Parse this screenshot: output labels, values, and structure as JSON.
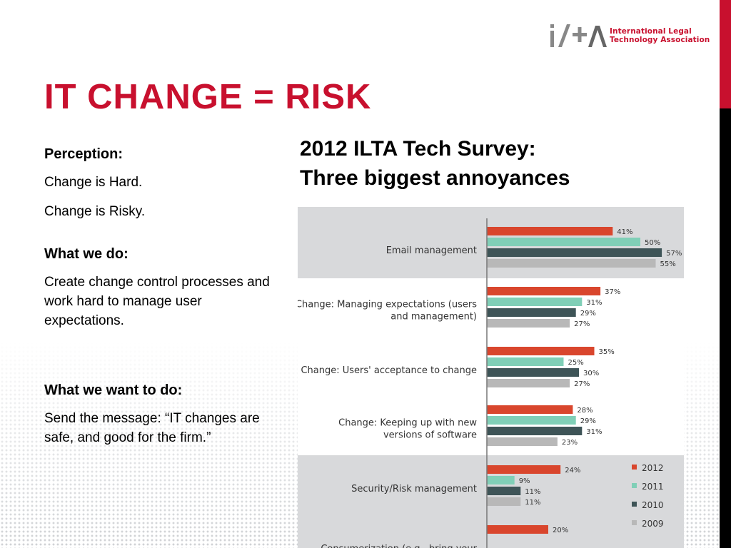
{
  "logo": {
    "mark_text": "i/+Λ",
    "line1": "International Legal",
    "line2": "Technology Association"
  },
  "title": "IT CHANGE = RISK",
  "left": {
    "perception_heading": "Perception:",
    "perception_line1": "Change is Hard.",
    "perception_line2": "Change is Risky.",
    "do_heading": "What we do:",
    "do_text": "Create change control processes and work hard to manage user expectations.",
    "want_heading": "What we want to do:",
    "want_text": "Send the message: “IT changes are safe, and good for the firm.”"
  },
  "survey": {
    "line1": "2012 ILTA Tech Survey:",
    "line2": "Three biggest annoyances"
  },
  "colors": {
    "accent_red": "#c8102e",
    "s2012": "#d9462d",
    "s2011": "#80cfb7",
    "s2010": "#3e5457",
    "s2009": "#b8b8b8"
  },
  "chart_data": {
    "type": "bar",
    "orientation": "horizontal",
    "categories": [
      [
        "Email management"
      ],
      [
        "Change: Managing expectations (users",
        "and management)"
      ],
      [
        "Change: Users' acceptance to change"
      ],
      [
        "Change: Keeping up with new",
        "versions of software"
      ],
      [
        "Security/Risk management"
      ],
      [
        "Consumerization (e.g., bring your"
      ]
    ],
    "series": [
      {
        "name": "2012",
        "values": [
          41,
          37,
          35,
          28,
          24,
          20
        ]
      },
      {
        "name": "2011",
        "values": [
          50,
          31,
          25,
          29,
          9,
          null
        ]
      },
      {
        "name": "2010",
        "values": [
          57,
          29,
          30,
          31,
          11,
          null
        ]
      },
      {
        "name": "2009",
        "values": [
          55,
          27,
          27,
          23,
          11,
          null
        ]
      }
    ],
    "value_suffix": "%",
    "highlighted_categories": [
      0,
      4,
      5
    ],
    "legend_position": "bottom-right",
    "xlim": [
      0,
      60
    ]
  }
}
